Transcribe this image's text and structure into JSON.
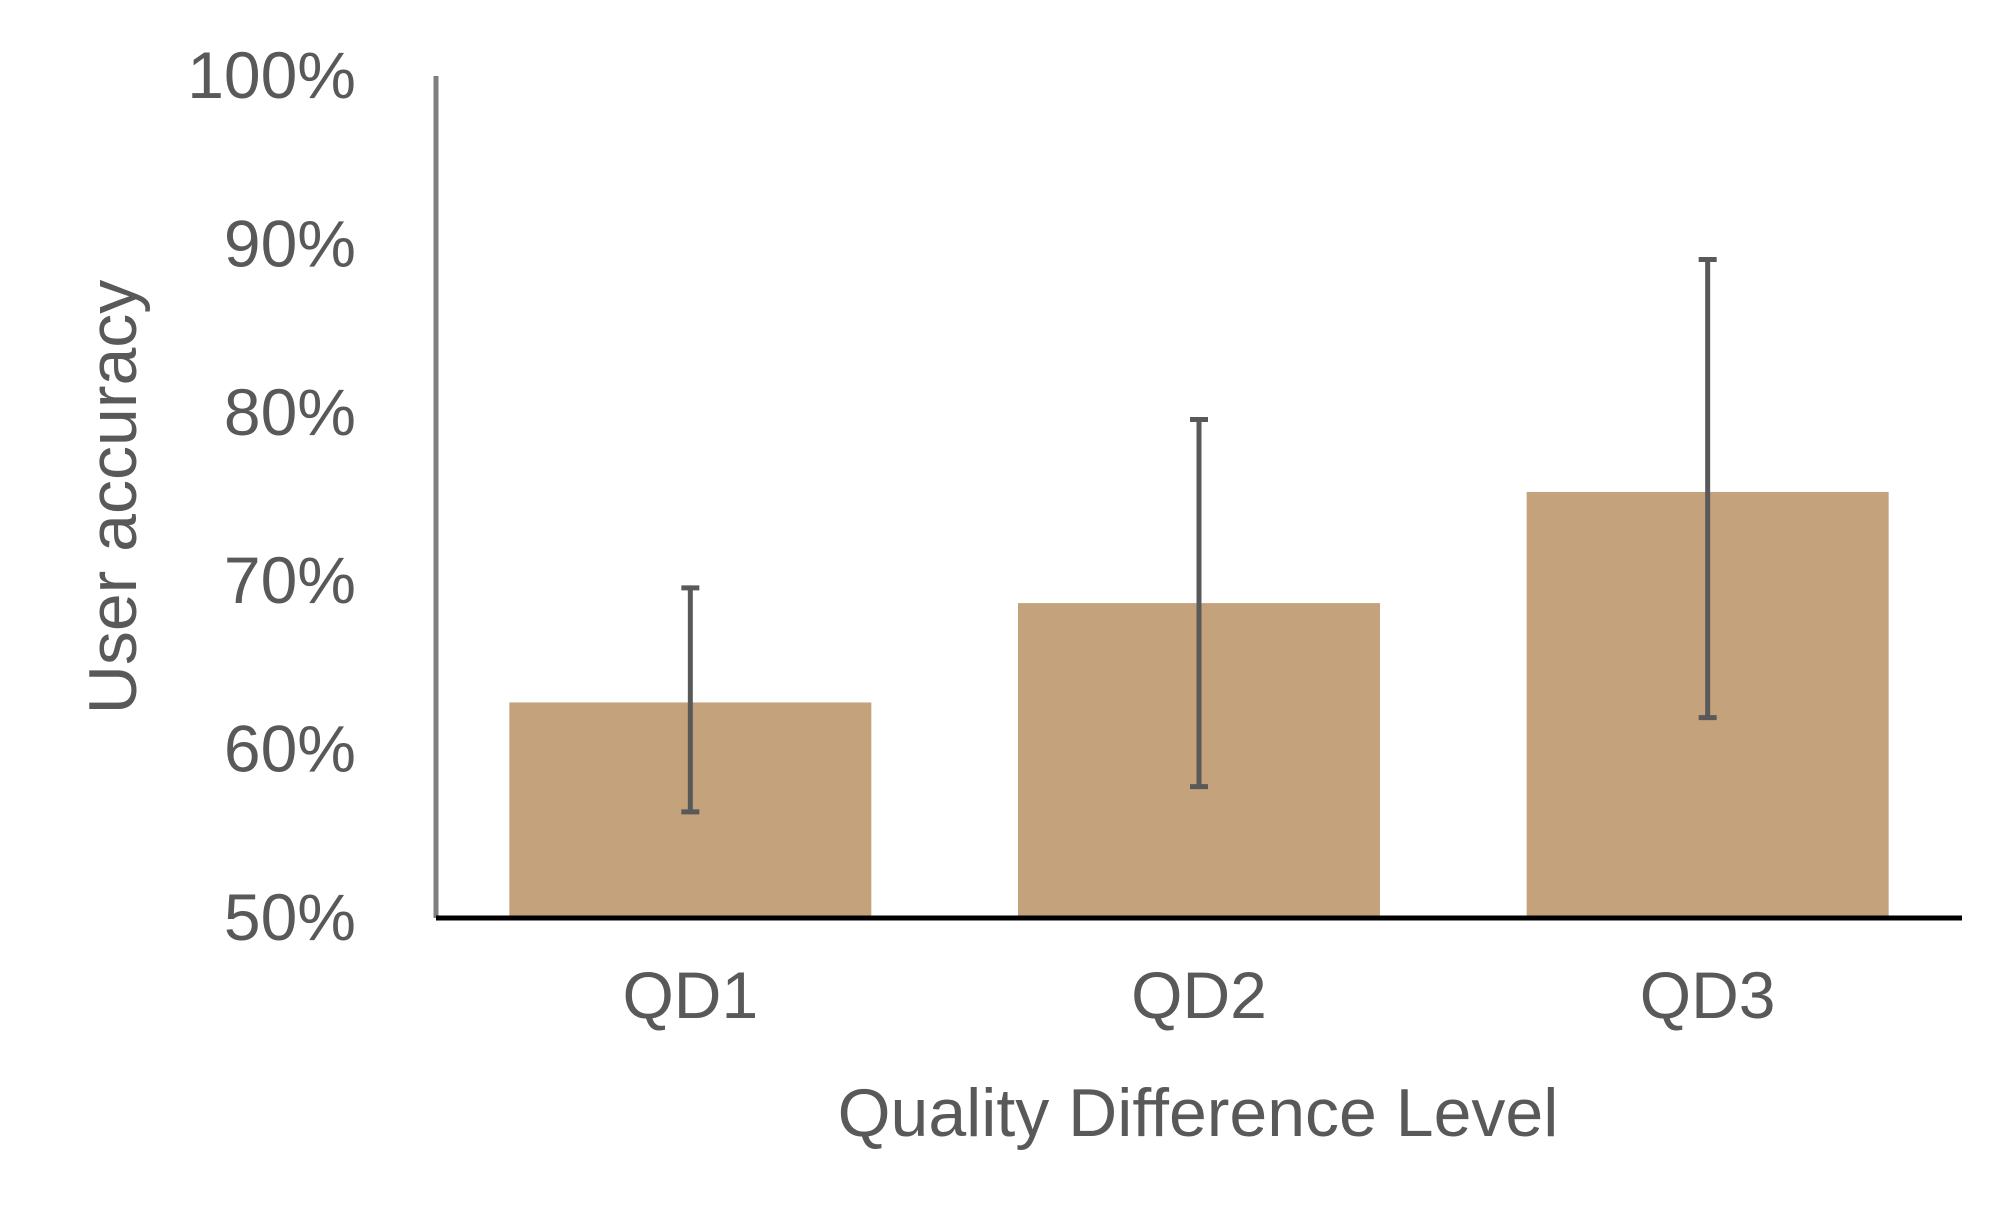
{
  "chart_data": {
    "type": "bar",
    "title": "",
    "xlabel": "Quality Difference Level",
    "ylabel": "User accuracy",
    "categories": [
      "QD1",
      "QD2",
      "QD3"
    ],
    "values": [
      0.628,
      0.687,
      0.753
    ],
    "error_low": [
      0.563,
      0.578,
      0.619
    ],
    "error_high": [
      0.696,
      0.796,
      0.891
    ],
    "ylim": [
      0.5,
      1.0
    ],
    "yticks": [
      0.5,
      0.6,
      0.7,
      0.8,
      0.9,
      1.0
    ],
    "ytick_labels": [
      "50%",
      "60%",
      "70%",
      "80%",
      "90%",
      "100%"
    ],
    "grid": false,
    "legend": "none",
    "colors": {
      "bar": "#c4a27b",
      "error_bar": "#595959",
      "y_axis": "#7f7f7f",
      "x_axis": "#000000",
      "text": "#595959"
    }
  }
}
